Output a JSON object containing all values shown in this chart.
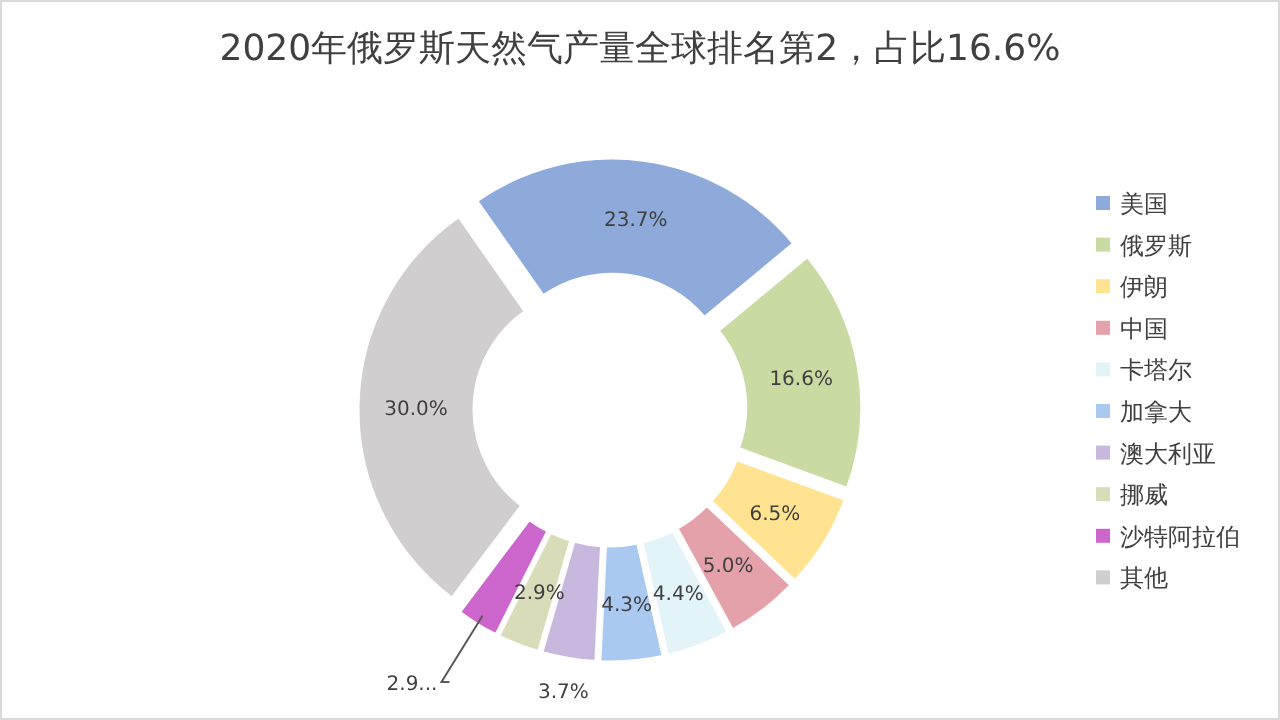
{
  "chart_data": {
    "type": "donut",
    "title": "2020年俄罗斯天然气产量全球排名第2，占比16.6%",
    "categories": [
      "美国",
      "俄罗斯",
      "伊朗",
      "中国",
      "卡塔尔",
      "加拿大",
      "澳大利亚",
      "挪威",
      "沙特阿拉伯",
      "其他"
    ],
    "values": [
      23.7,
      16.6,
      6.5,
      5.0,
      4.4,
      4.3,
      3.7,
      2.9,
      2.9,
      30.0
    ],
    "colors": [
      "#8eaadb",
      "#c9dba2",
      "#ffe390",
      "#e5a1a9",
      "#e2f4f8",
      "#a9c9f1",
      "#c9b8dd",
      "#d9dcb9",
      "#cc66cc",
      "#d0cece"
    ],
    "value_labels": [
      "23.7%",
      "16.6%",
      "6.5%",
      "5.0%",
      "4.4%",
      "4.3%",
      "3.7%",
      "2.9%",
      "2.9...",
      "30.0%"
    ],
    "legend": "right"
  }
}
